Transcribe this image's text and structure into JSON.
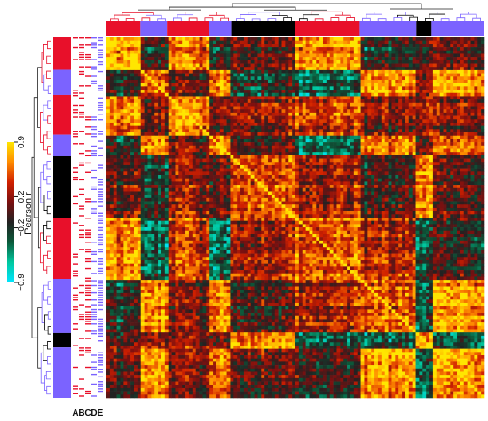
{
  "chart_data": {
    "type": "heatmap",
    "title": "",
    "subtitle": "",
    "description_note": "",
    "matrix_kind": "correlation",
    "value_range": [
      -0.9,
      0.9
    ],
    "colorbar": {
      "label": "Pearson r",
      "ticks": [
        "0.9",
        "0.2",
        "−0.2",
        "−0.9"
      ],
      "tick_values": [
        0.9,
        0.2,
        -0.2,
        -0.9
      ],
      "colors": [
        "#00e5ff",
        "#00c8a0",
        "#0b5a3a",
        "#222222",
        "#7a1010",
        "#d02000",
        "#ff8c00",
        "#ffe600"
      ]
    },
    "cluster_colors": [
      "#e8102a",
      "#7b63ff",
      "#000000"
    ],
    "top_dendrogram_clusters": [
      "red",
      "purple",
      "red",
      "purple",
      "black",
      "red",
      "purple",
      "black",
      "purple"
    ],
    "left_dendrogram_clusters": [
      "red",
      "purple",
      "red",
      "purple",
      "black",
      "red",
      "purple",
      "black",
      "purple"
    ],
    "annotation_tracks": [
      "A",
      "B",
      "C",
      "D",
      "E"
    ]
  }
}
